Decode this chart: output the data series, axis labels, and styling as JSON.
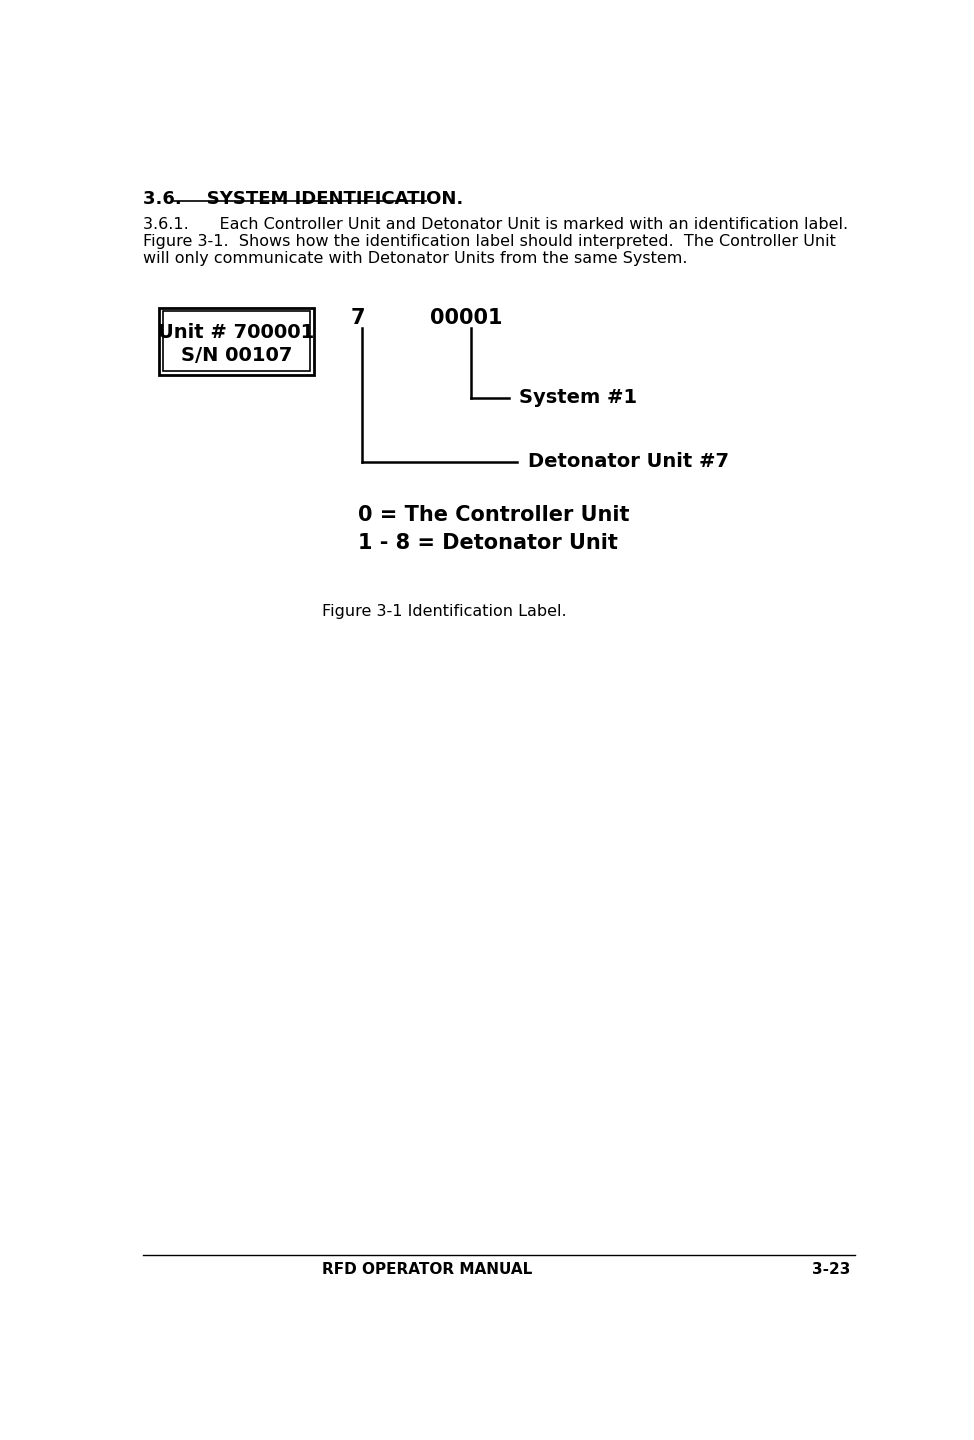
{
  "bg_color": "#ffffff",
  "heading": "3.6.    SYSTEM IDENTIFICATION.",
  "para_line1": "3.6.1.      Each Controller Unit and Detonator Unit is marked with an identification label.",
  "para_line2": "Figure 3-1.  Shows how the identification label should interpreted.  The Controller Unit",
  "para_line3": "will only communicate with Detonator Units from the same System.",
  "label_line1": "Unit # 700001",
  "label_line2": "S/N 00107",
  "digit1": "7",
  "digit2": "00001",
  "label_system": "System #1",
  "label_detonator": "Detonator Unit #7",
  "legend_line1": "0 = The Controller Unit",
  "legend_line2": "1 - 8 = Detonator Unit",
  "figure_caption": "Figure 3-1 Identification Label.",
  "footer_left": "RFD OPERATOR MANUAL",
  "footer_right": "3-23"
}
